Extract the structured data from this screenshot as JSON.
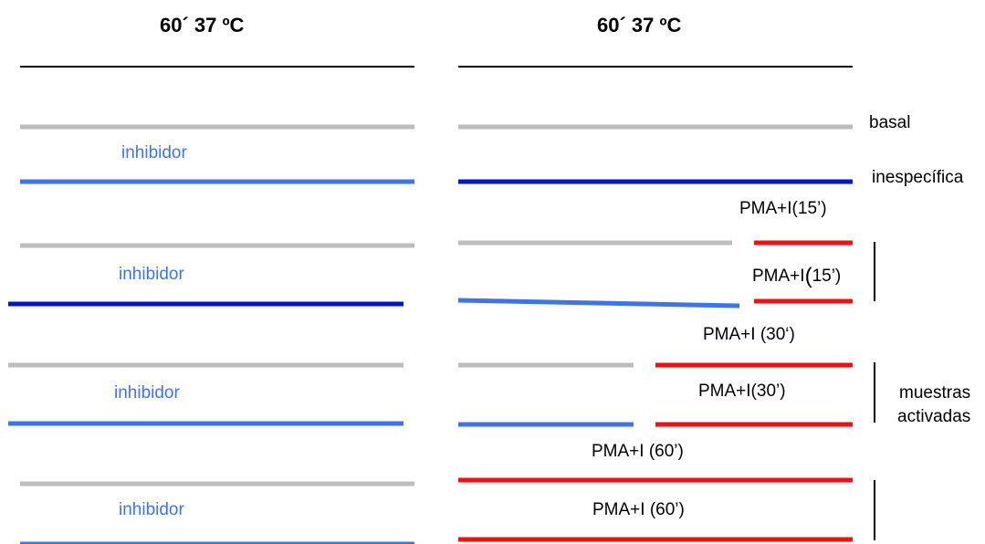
{
  "headers": {
    "left": "60´   37 ºC",
    "right": "60´   37 ºC"
  },
  "inhibitor_label": "inhibidor",
  "labels": {
    "basal": "basal",
    "inespecifica": "inespecífica",
    "pma15_top": "PMA+I(15’)",
    "pma15_mid_prefix": "PMA+I",
    "pma15_mid_paren": "(",
    "pma15_mid_suffix": "15’)",
    "pma30_top": "PMA+I (30‘)",
    "pma30_mid": "PMA+I(30’)",
    "pma60_top": "PMA+I (60’)",
    "pma60_mid": "PMA+I (60’)",
    "muestras_line1": "muestras",
    "muestras_line2": "activadas"
  },
  "colors": {
    "black": "#000000",
    "gray": "#bdbdbd",
    "light_blue": "#3f74e6",
    "dark_blue": "#0014d2",
    "red": "#ee1111"
  }
}
